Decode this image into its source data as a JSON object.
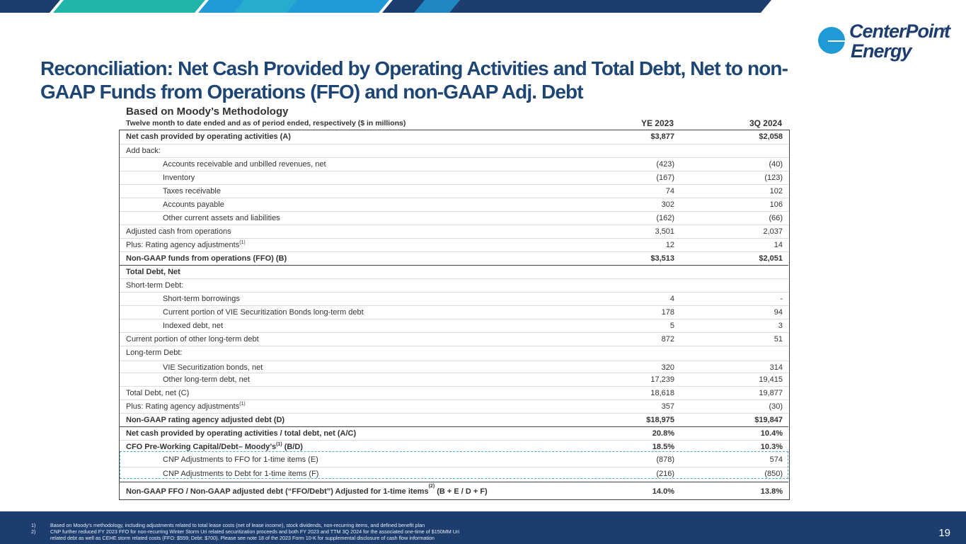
{
  "colors": {
    "navy": "#1d3d6e",
    "teal": "#1fb5a8",
    "blue": "#1f9ad6",
    "title": "#1d4675"
  },
  "logo": {
    "line1": "CenterPoint",
    "line2": "Energy",
    "reg": "®"
  },
  "title": "Reconciliation: Net Cash Provided by Operating Activities and Total Debt, Net to non-GAAP Funds from Operations (FFO) and non-GAAP Adj. Debt",
  "subtitle": "Based on Moody’s Methodology",
  "subnote": "Twelve month to date ended and as of period ended, respectively ($ in millions)",
  "columns": [
    "YE 2023",
    "3Q 2024"
  ],
  "rows": [
    {
      "label": "Net cash provided by operating activities (A)",
      "v1": "$3,877",
      "v2": "$2,058"
    },
    {
      "label": "Add back:",
      "v1": "",
      "v2": ""
    },
    {
      "label": "Accounts receivable and unbilled revenues, net",
      "v1": "(423)",
      "v2": "(40)"
    },
    {
      "label": "Inventory",
      "v1": "(167)",
      "v2": "(123)"
    },
    {
      "label": "Taxes receivable",
      "v1": "74",
      "v2": "102"
    },
    {
      "label": "Accounts payable",
      "v1": "302",
      "v2": "106"
    },
    {
      "label": "Other current assets and liabilities",
      "v1": "(162)",
      "v2": "(66)"
    },
    {
      "label": "Adjusted cash from operations",
      "v1": "3,501",
      "v2": "2,037"
    },
    {
      "label": "Plus: Rating agency adjustments",
      "sup": "(1)",
      "v1": "12",
      "v2": "14"
    },
    {
      "label": "Non-GAAP funds from operations (FFO) (B)",
      "v1": "$3,513",
      "v2": "$2,051"
    },
    {
      "label": "Total Debt, Net",
      "v1": "",
      "v2": ""
    },
    {
      "label": "Short-term Debt:",
      "v1": "",
      "v2": ""
    },
    {
      "label": "Short-term borrowings",
      "v1": "4",
      "v2": "-"
    },
    {
      "label": "Current portion of VIE Securitization Bonds long-term debt",
      "v1": "178",
      "v2": "94"
    },
    {
      "label": "Indexed debt, net",
      "v1": "5",
      "v2": "3"
    },
    {
      "label": "Current portion of other long-term debt",
      "v1": "872",
      "v2": "51"
    },
    {
      "label": "Long-term Debt:",
      "v1": "",
      "v2": ""
    },
    {
      "label": "VIE Securitization bonds, net",
      "v1": "320",
      "v2": "314"
    },
    {
      "label": "Other long-term debt, net",
      "v1": "17,239",
      "v2": "19,415"
    },
    {
      "label": "Total Debt, net (C)",
      "v1": "18,618",
      "v2": "19,877"
    },
    {
      "label": "Plus: Rating agency adjustments",
      "sup": "(1)",
      "v1": "357",
      "v2": "(30)"
    },
    {
      "label": "Non-GAAP rating agency adjusted debt (D)",
      "v1": "$18,975",
      "v2": "$19,847"
    },
    {
      "label": "Net cash provided by operating activities / total debt, net (A/C)",
      "v1": "20.8%",
      "v2": "10.4%"
    },
    {
      "label": "CFO Pre-Working Capital/Debt– Moody’s",
      "sup": "(1)",
      "tail": " (B/D)",
      "v1": "18.5%",
      "v2": "10.3%"
    },
    {
      "label": "CNP Adjustments to FFO for 1-time items (E)",
      "v1": "(878)",
      "v2": "574"
    },
    {
      "label": "CNP Adjustments to Debt for 1-time items (F)",
      "v1": "(216)",
      "v2": "(850)"
    },
    {
      "label": "Non-GAAP FFO / Non-GAAP adjusted debt (“FFO/Debt”) Adjusted for 1-time items",
      "sup": "(2)",
      "tail": " (B + E / D + F)",
      "v1": "14.0%",
      "v2": "13.8%"
    }
  ],
  "footnotes": [
    {
      "num": "1)",
      "text": "Based on Moody’s methodology, including adjustments related to total lease costs (net of lease income), stock dividends, non-recurring items, and defined benefit plan"
    },
    {
      "num": "2)",
      "text": "CNP further reduced FY 2023 FFO for non-recurring Winter Storm Uri related securitization proceeds and both FY 2023 and TTM 3Q 2024 for the associated one-time of $150MM Uri"
    },
    {
      "num": "",
      "text": "related debt as well as CEHE storm related costs (FFO: $559; Debt: $700). Please see note 18 of the 2023 Form 10-K for supplemental disclosure of cash flow information"
    }
  ],
  "page_number": "19"
}
